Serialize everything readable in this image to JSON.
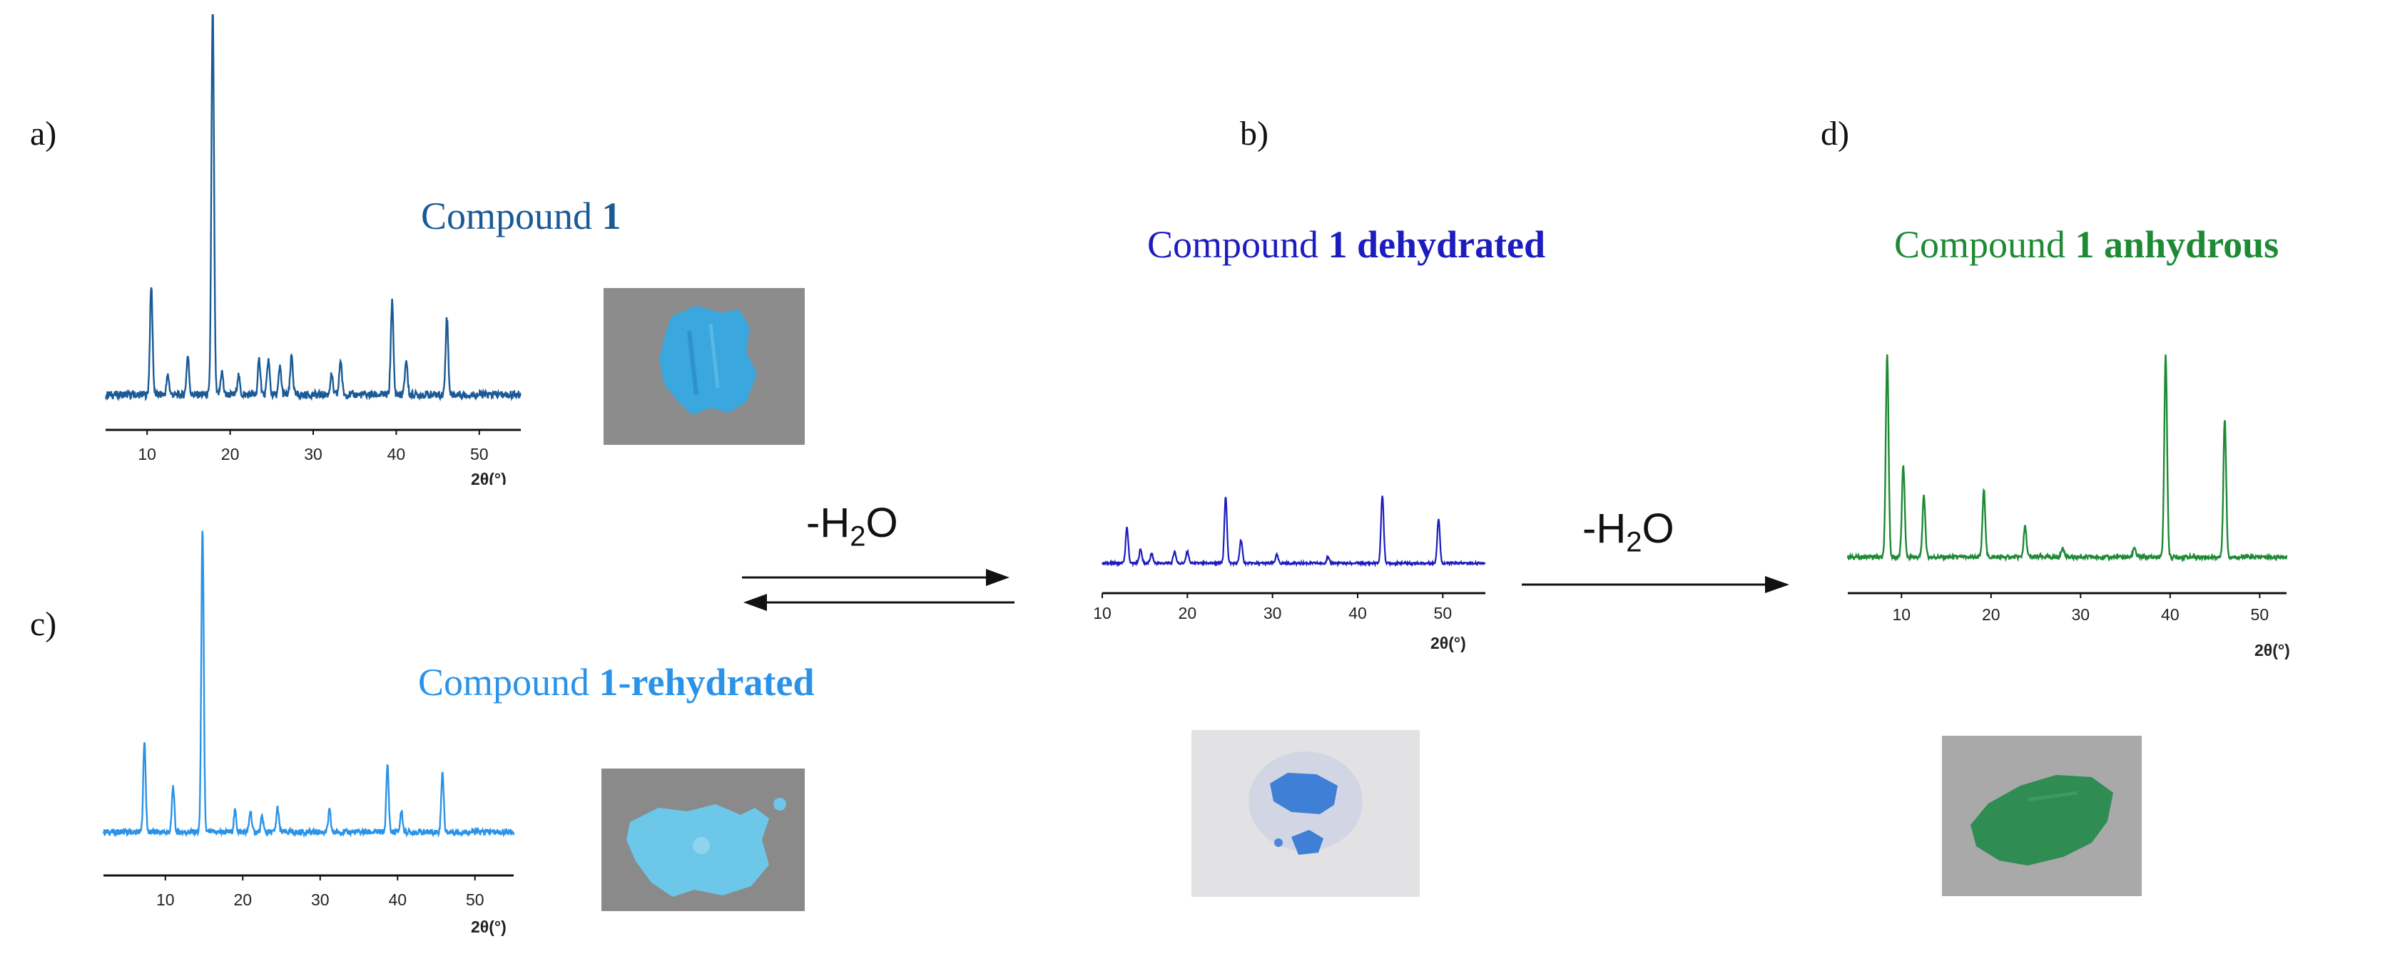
{
  "panels": {
    "a": {
      "letter": "a)",
      "title_prefix": "Compound ",
      "title_bold": "1",
      "color": "#1a5a96",
      "ticks": [
        "10",
        "20",
        "30",
        "40",
        "50"
      ],
      "xlabel": "2θ(°)"
    },
    "b": {
      "letter": "b)",
      "title_prefix": "Compound ",
      "title_bold": "1 dehydrated",
      "color": "#1c1cbf",
      "ticks": [
        "10",
        "20",
        "30",
        "40",
        "50"
      ],
      "xlabel": "2θ(°)"
    },
    "c": {
      "letter": "c)",
      "title_prefix": "Compound ",
      "title_bold": "1-rehydrated",
      "color": "#2a93e8",
      "ticks": [
        "10",
        "20",
        "30",
        "40",
        "50"
      ],
      "xlabel": "2θ(°)"
    },
    "d": {
      "letter": "d)",
      "title_prefix": "Compound ",
      "title_bold": "1 anhydrous",
      "color": "#1e8a35",
      "ticks": [
        "10",
        "20",
        "30",
        "40",
        "50"
      ],
      "xlabel": "2θ(°)"
    }
  },
  "arrows": {
    "reversible_label_main": "-H",
    "reversible_label_sub": "2",
    "reversible_label_tail": "O",
    "forward_label_main": "-H",
    "forward_label_sub": "2",
    "forward_label_tail": "O"
  },
  "photos": {
    "a": {
      "sample_color": "#3aa7de",
      "background": "#8c8c8c"
    },
    "c": {
      "sample_color": "#6cc7e8",
      "background": "#8a8a8a"
    },
    "b": {
      "sample_color": "#3f7fd6",
      "background": "#e2e2e4"
    },
    "d": {
      "sample_color": "#2f8c52",
      "background": "#a9a9a9"
    }
  },
  "chart_data": [
    {
      "panel": "a",
      "type": "line",
      "title": "Compound 1",
      "xlabel": "2θ(°)",
      "xlim": [
        5,
        55
      ],
      "peaks": [
        [
          10.5,
          0.28
        ],
        [
          12.5,
          0.05
        ],
        [
          14.9,
          0.1
        ],
        [
          17.9,
          1.0
        ],
        [
          19.0,
          0.06
        ],
        [
          21.0,
          0.05
        ],
        [
          23.5,
          0.09
        ],
        [
          24.6,
          0.09
        ],
        [
          26.0,
          0.07
        ],
        [
          27.4,
          0.1
        ],
        [
          32.2,
          0.05
        ],
        [
          33.3,
          0.09
        ],
        [
          39.5,
          0.24
        ],
        [
          41.2,
          0.09
        ],
        [
          46.1,
          0.2
        ]
      ]
    },
    {
      "panel": "c",
      "type": "line",
      "title": "Compound 1-rehydrated",
      "xlabel": "2θ(°)",
      "xlim": [
        2,
        55
      ],
      "peaks": [
        [
          7.3,
          0.3
        ],
        [
          11.0,
          0.15
        ],
        [
          14.8,
          1.0
        ],
        [
          19.0,
          0.07
        ],
        [
          21.0,
          0.07
        ],
        [
          22.5,
          0.05
        ],
        [
          24.5,
          0.08
        ],
        [
          31.2,
          0.07
        ],
        [
          38.7,
          0.22
        ],
        [
          40.5,
          0.07
        ],
        [
          45.8,
          0.2
        ]
      ]
    },
    {
      "panel": "b",
      "type": "line",
      "title": "Compound 1 dehydrated",
      "xlabel": "2θ(°)",
      "xlim": [
        10,
        55
      ],
      "peaks": [
        [
          12.9,
          0.3
        ],
        [
          14.5,
          0.12
        ],
        [
          15.8,
          0.08
        ],
        [
          18.5,
          0.1
        ],
        [
          20.0,
          0.1
        ],
        [
          24.5,
          0.56
        ],
        [
          26.3,
          0.2
        ],
        [
          30.5,
          0.07
        ],
        [
          36.5,
          0.05
        ],
        [
          42.9,
          0.58
        ],
        [
          49.5,
          0.38
        ]
      ]
    },
    {
      "panel": "d",
      "type": "line",
      "title": "Compound 1 anhydrous",
      "xlabel": "2θ(°)",
      "xlim": [
        4,
        53
      ],
      "peaks": [
        [
          8.4,
          1.0
        ],
        [
          10.2,
          0.45
        ],
        [
          12.5,
          0.3
        ],
        [
          19.2,
          0.33
        ],
        [
          23.8,
          0.15
        ],
        [
          28.0,
          0.05
        ],
        [
          36.0,
          0.05
        ],
        [
          39.5,
          1.0
        ],
        [
          46.1,
          0.68
        ]
      ]
    }
  ]
}
